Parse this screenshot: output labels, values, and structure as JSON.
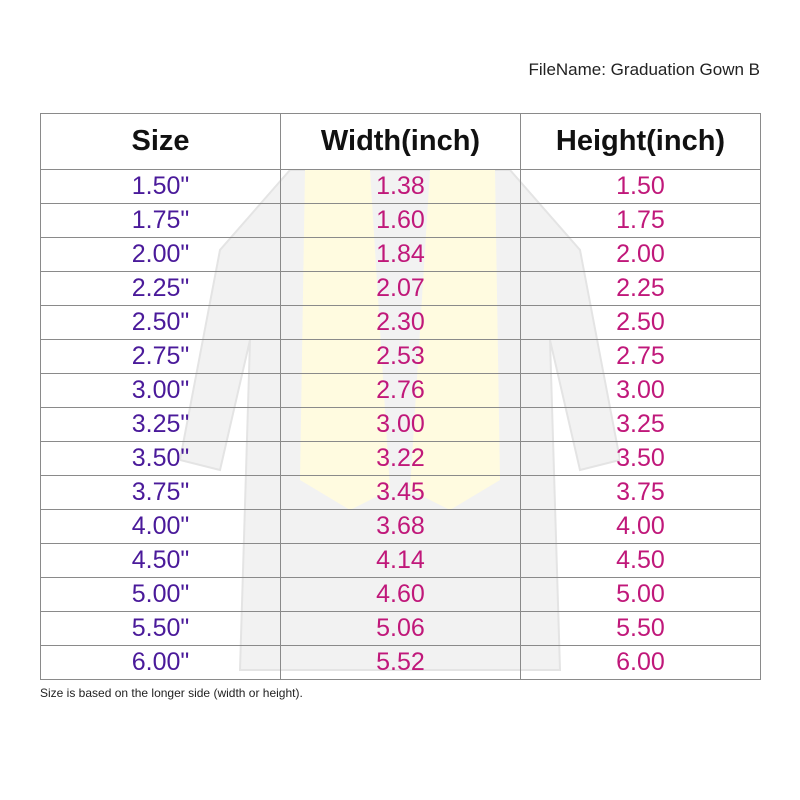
{
  "filename_label": "FileName: Graduation Gown B",
  "headers": [
    "Size",
    "Width(inch)",
    "Height(inch)"
  ],
  "rows": [
    [
      "1.50\"",
      "1.38",
      "1.50"
    ],
    [
      "1.75\"",
      "1.60",
      "1.75"
    ],
    [
      "2.00\"",
      "1.84",
      "2.00"
    ],
    [
      "2.25\"",
      "2.07",
      "2.25"
    ],
    [
      "2.50\"",
      "2.30",
      "2.50"
    ],
    [
      "2.75\"",
      "2.53",
      "2.75"
    ],
    [
      "3.00\"",
      "2.76",
      "3.00"
    ],
    [
      "3.25\"",
      "3.00",
      "3.25"
    ],
    [
      "3.50\"",
      "3.22",
      "3.50"
    ],
    [
      "3.75\"",
      "3.45",
      "3.75"
    ],
    [
      "4.00\"",
      "3.68",
      "4.00"
    ],
    [
      "4.50\"",
      "4.14",
      "4.50"
    ],
    [
      "5.00\"",
      "4.60",
      "5.00"
    ],
    [
      "5.50\"",
      "5.06",
      "5.50"
    ],
    [
      "6.00\"",
      "5.52",
      "6.00"
    ]
  ],
  "note": "Size is based on the longer side (width or height).",
  "colors": {
    "size_text": "#4a1a9a",
    "value_text": "#c0187a",
    "stole": "#fffbe0"
  }
}
